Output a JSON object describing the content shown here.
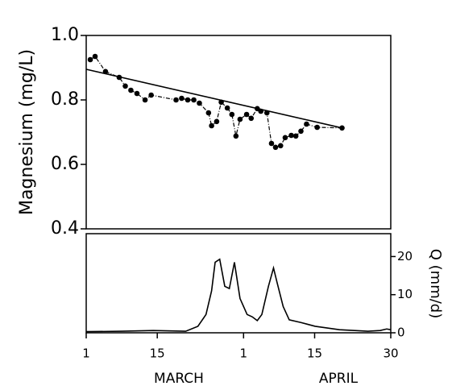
{
  "chart_data": [
    {
      "type": "line",
      "ylabel": "Magnesium (mg/L)",
      "xlim": [
        1,
        61
      ],
      "ylim": [
        0.4,
        1.0
      ],
      "yticks": [
        0.4,
        0.6,
        0.8,
        {
          "value": 1.0,
          "label": "1.0"
        }
      ],
      "series": [
        {
          "color": "#000000",
          "markers": true,
          "x": [
            1.8,
            2.75,
            4.8,
            7.5,
            8.7,
            9.8,
            11,
            12.6,
            13.8,
            18.7,
            19.8,
            21,
            22.2,
            23.3,
            25.1,
            25.7,
            26.7,
            27.6,
            28.8,
            29.7,
            30.5,
            31.3,
            32.6,
            33.5,
            34.7,
            35.4,
            36.6,
            37.5,
            38.3,
            39.3,
            40.2,
            41.4,
            42.3,
            43.3,
            44.4,
            46.5,
            51.4
          ],
          "values": [
            0.925,
            0.935,
            0.888,
            0.87,
            0.843,
            0.83,
            0.82,
            0.8,
            0.815,
            0.8,
            0.805,
            0.8,
            0.8,
            0.79,
            0.76,
            0.72,
            0.733,
            0.793,
            0.775,
            0.755,
            0.688,
            0.74,
            0.755,
            0.743,
            0.773,
            0.765,
            0.76,
            0.665,
            0.653,
            0.658,
            0.683,
            0.69,
            0.688,
            0.703,
            0.725,
            0.715,
            0.713
          ]
        },
        {
          "color": "#000000",
          "markers": false,
          "x": [
            1,
            51.4
          ],
          "values": [
            0.895,
            0.713
          ]
        }
      ]
    },
    {
      "type": "line",
      "ylabel": "Q (mm/d)",
      "yaxis_side": "right",
      "xlim": [
        1,
        61
      ],
      "ylim": [
        0,
        26
      ],
      "yticks": [
        0,
        10,
        20
      ],
      "xticks": [
        {
          "value": 1,
          "label": "1"
        },
        {
          "value": 15,
          "label": "15"
        },
        {
          "value": 32,
          "label": "1"
        },
        {
          "value": 46,
          "label": "15"
        },
        {
          "value": 61,
          "label": "30"
        }
      ],
      "month_labels": [
        "MARCH",
        "APRIL"
      ],
      "series": [
        {
          "color": "#000000",
          "markers": false,
          "x": [
            1,
            7.9,
            14.2,
            20.6,
            23,
            24.6,
            25.7,
            26.4,
            27.3,
            28.3,
            29.2,
            30.2,
            31.3,
            32.7,
            33.7,
            34.7,
            35.6,
            36.9,
            37.9,
            38.6,
            39.8,
            41,
            43.3,
            46.1,
            50.9,
            56.5,
            58.9,
            60.2,
            61
          ],
          "values": [
            0.3,
            0.4,
            0.6,
            0.4,
            1.7,
            4.8,
            11,
            18.5,
            19.3,
            12.2,
            11.6,
            18.5,
            9,
            4.8,
            4.2,
            3.2,
            4.8,
            12.2,
            17,
            13.2,
            6.9,
            3.4,
            2.7,
            1.7,
            0.8,
            0.4,
            0.6,
            1.0,
            0.8
          ]
        }
      ]
    }
  ]
}
